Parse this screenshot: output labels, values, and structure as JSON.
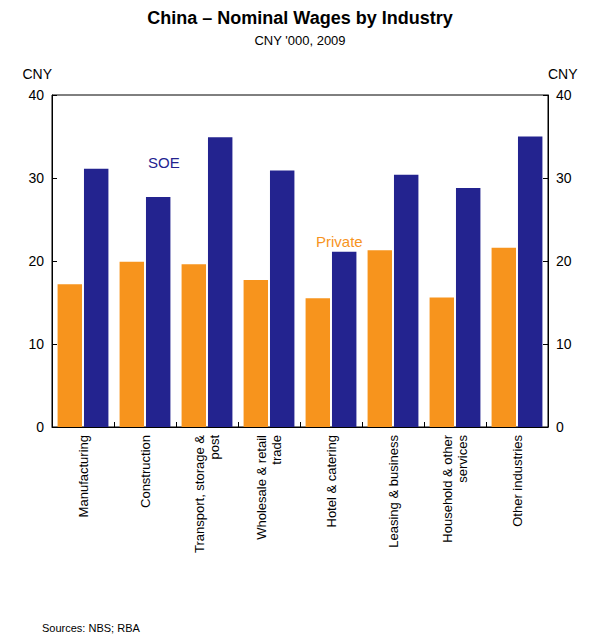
{
  "chart_data": {
    "type": "bar",
    "title": "China – Nominal Wages by Industry",
    "subtitle": "CNY '000, 2009",
    "ylabel": "CNY",
    "source": "Sources: NBS; RBA",
    "categories": [
      "Manufacturing",
      "Construction",
      "Transport, storage &\npost",
      "Wholesale & retail\ntrade",
      "Hotel & catering",
      "Leasing & business",
      "Household & other\nservices",
      "Other industries"
    ],
    "series": [
      {
        "name": "Private",
        "color": "#f7941d",
        "values": [
          17.2,
          19.9,
          19.6,
          17.7,
          15.5,
          21.3,
          15.6,
          21.6
        ]
      },
      {
        "name": "SOE",
        "color": "#23238f",
        "values": [
          31.1,
          27.7,
          34.9,
          30.9,
          21.1,
          30.4,
          28.8,
          35.0
        ]
      }
    ],
    "ylim": [
      0,
      40
    ],
    "yticks": [
      0,
      10,
      20,
      30,
      40
    ],
    "grid": false
  }
}
